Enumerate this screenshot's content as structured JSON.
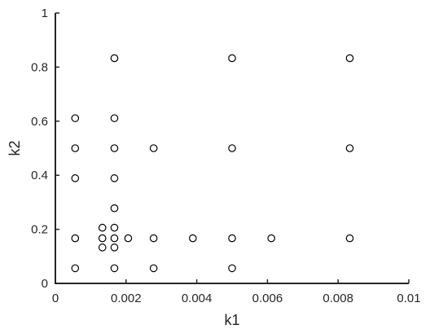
{
  "chart_data": {
    "type": "scatter",
    "title": "",
    "xlabel": "k1",
    "ylabel": "k2",
    "xlim": [
      0,
      0.01
    ],
    "ylim": [
      0,
      1
    ],
    "grid": false,
    "x_ticks": [
      "0",
      "0.002",
      "0.004",
      "0.006",
      "0.008",
      "0.01"
    ],
    "x_tick_values": [
      0,
      0.002,
      0.004,
      0.006,
      0.008,
      0.01
    ],
    "y_ticks": [
      "0",
      "0.2",
      "0.4",
      "0.6",
      "0.8",
      "1"
    ],
    "y_tick_values": [
      0,
      0.2,
      0.4,
      0.6,
      0.8,
      1
    ],
    "marker": "open-circle",
    "points": [
      {
        "x": 0.00056,
        "y": 0.611
      },
      {
        "x": 0.00056,
        "y": 0.5
      },
      {
        "x": 0.00056,
        "y": 0.389
      },
      {
        "x": 0.00056,
        "y": 0.167
      },
      {
        "x": 0.00056,
        "y": 0.056
      },
      {
        "x": 0.00133,
        "y": 0.206
      },
      {
        "x": 0.00133,
        "y": 0.167
      },
      {
        "x": 0.00133,
        "y": 0.133
      },
      {
        "x": 0.00167,
        "y": 0.833
      },
      {
        "x": 0.00167,
        "y": 0.611
      },
      {
        "x": 0.00167,
        "y": 0.5
      },
      {
        "x": 0.00167,
        "y": 0.389
      },
      {
        "x": 0.00167,
        "y": 0.278
      },
      {
        "x": 0.00167,
        "y": 0.206
      },
      {
        "x": 0.00167,
        "y": 0.167
      },
      {
        "x": 0.00167,
        "y": 0.133
      },
      {
        "x": 0.00167,
        "y": 0.056
      },
      {
        "x": 0.00206,
        "y": 0.167
      },
      {
        "x": 0.00278,
        "y": 0.5
      },
      {
        "x": 0.00278,
        "y": 0.167
      },
      {
        "x": 0.00278,
        "y": 0.056
      },
      {
        "x": 0.00389,
        "y": 0.167
      },
      {
        "x": 0.005,
        "y": 0.833
      },
      {
        "x": 0.005,
        "y": 0.5
      },
      {
        "x": 0.005,
        "y": 0.167
      },
      {
        "x": 0.005,
        "y": 0.056
      },
      {
        "x": 0.00611,
        "y": 0.167
      },
      {
        "x": 0.00833,
        "y": 0.833
      },
      {
        "x": 0.00833,
        "y": 0.5
      },
      {
        "x": 0.00833,
        "y": 0.167
      }
    ]
  }
}
